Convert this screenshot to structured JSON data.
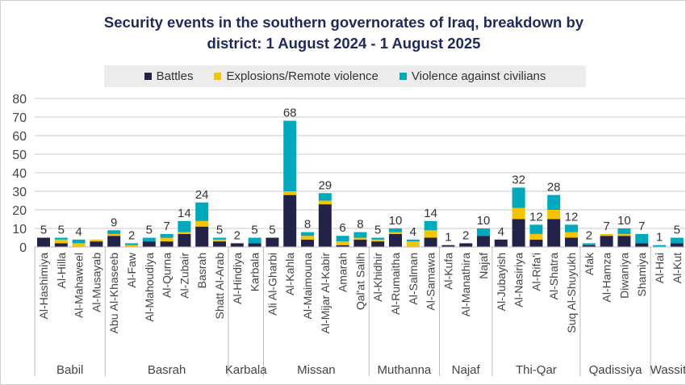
{
  "chart_data": {
    "type": "bar",
    "stacked": true,
    "title": "Security events in the southern governorates of Iraq, breakdown by district: 1 August 2024 - 1 August 2025",
    "title_lines": [
      "Security events in the southern governorates of Iraq, breakdown by",
      "district: 1 August 2024 - 1 August 2025"
    ],
    "ylim": [
      0,
      80
    ],
    "yticks": [
      0,
      10,
      20,
      30,
      40,
      50,
      60,
      70,
      80
    ],
    "grid": true,
    "legend_position": "top",
    "categories": [
      "Al-Hashimiya",
      "Al-Hilla",
      "Al-Mahaweel",
      "Al-Musayab",
      "Abu Al-Khaseeb",
      "Al-Faw",
      "Al-Mahoudiya",
      "Al-Qurna",
      "Al-Zubair",
      "Basrah",
      "Shatt Al-Arab",
      "Al-Hindiya",
      "Karbala",
      "Ali Al-Gharbi",
      "Al-Kahla",
      "Al-Maimouna",
      "Al-Mijar Al-Kabir",
      "Amarah",
      "Qal'at Salih",
      "Al-Khidhir",
      "Al-Rumaitha",
      "Al-Salman",
      "Al-Samawa",
      "Al-Kufa",
      "Al-Manathira",
      "Najaf",
      "Al-Jubayish",
      "Al-Nasiriya",
      "Al-Rifa'i",
      "Al-Shatra",
      "Suq Al-Shuyukh",
      "Afak",
      "Al-Hamza",
      "Diwaniya",
      "Shamiya",
      "Al-Hai",
      "Al-Kut"
    ],
    "groups": [
      {
        "name": "Babil",
        "count": 4
      },
      {
        "name": "Basrah",
        "count": 7
      },
      {
        "name": "Karbala",
        "count": 2
      },
      {
        "name": "Missan",
        "count": 6
      },
      {
        "name": "Muthanna",
        "count": 4
      },
      {
        "name": "Najaf",
        "count": 3
      },
      {
        "name": "Thi-Qar",
        "count": 5
      },
      {
        "name": "Qadissiya",
        "count": 4
      },
      {
        "name": "Wassit",
        "count": 2
      }
    ],
    "series": [
      {
        "name": "Battles",
        "color": "#23234a",
        "values": [
          5,
          2,
          0,
          3,
          6,
          0,
          3,
          3,
          7,
          11,
          3,
          2,
          2,
          5,
          28,
          4,
          23,
          1,
          4,
          3,
          7,
          0,
          5,
          1,
          2,
          6,
          4,
          15,
          4,
          15,
          5,
          1,
          6,
          6,
          2,
          0,
          2
        ]
      },
      {
        "name": "Explosions/Remote violence",
        "color": "#f5c400",
        "values": [
          0,
          2,
          2,
          1,
          1,
          1,
          0,
          2,
          1,
          3,
          1,
          0,
          0,
          0,
          2,
          2,
          2,
          2,
          1,
          1,
          1,
          3,
          4,
          0,
          0,
          0,
          0,
          6,
          3,
          5,
          3,
          0,
          1,
          1,
          0,
          0,
          0
        ]
      },
      {
        "name": "Violence against civilians",
        "color": "#00a9bc",
        "values": [
          0,
          1,
          2,
          0,
          2,
          1,
          2,
          2,
          6,
          10,
          1,
          0,
          3,
          0,
          38,
          2,
          4,
          3,
          3,
          1,
          2,
          1,
          5,
          0,
          0,
          4,
          0,
          11,
          5,
          8,
          4,
          1,
          0,
          3,
          5,
          1,
          3
        ]
      }
    ],
    "total_labels": [
      "5",
      "5",
      "4",
      "",
      "9",
      "2",
      "5",
      "7",
      "14",
      "24",
      "5",
      "2",
      "5",
      "5",
      "68",
      "8",
      "29",
      "6",
      "8",
      "5",
      "10",
      "4",
      "14",
      "1",
      "2",
      "10",
      "4",
      "32",
      "12",
      "28",
      "12",
      "2",
      "7",
      "10",
      "7",
      "1",
      "5"
    ]
  }
}
